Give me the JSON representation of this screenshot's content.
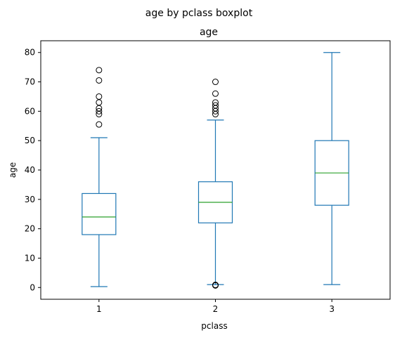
{
  "suptitle": "age by pclass boxplot",
  "chart_data": {
    "type": "boxplot",
    "title": "age",
    "xlabel": "pclass",
    "ylabel": "age",
    "categories": [
      "1",
      "2",
      "3"
    ],
    "ylim": [
      -4,
      84
    ],
    "yticks": [
      0,
      10,
      20,
      30,
      40,
      50,
      60,
      70,
      80
    ],
    "grid": false,
    "colors": {
      "box": "#1f77b4",
      "median": "#2ca02c",
      "outlier": "#000000"
    },
    "boxes": [
      {
        "category": "1",
        "min": 0.3,
        "q1": 18,
        "median": 24,
        "q3": 32,
        "max": 51,
        "outliers": [
          55.5,
          59,
          60,
          61,
          63,
          65,
          70.5,
          74
        ]
      },
      {
        "category": "2",
        "min": 1,
        "q1": 22,
        "median": 29,
        "q3": 36,
        "max": 57,
        "outliers": [
          59,
          60,
          61,
          62,
          63,
          66,
          70,
          0.7,
          0.8,
          0.9
        ]
      },
      {
        "category": "3",
        "min": 1,
        "q1": 28,
        "median": 39,
        "q3": 50,
        "max": 80,
        "outliers": []
      }
    ]
  }
}
